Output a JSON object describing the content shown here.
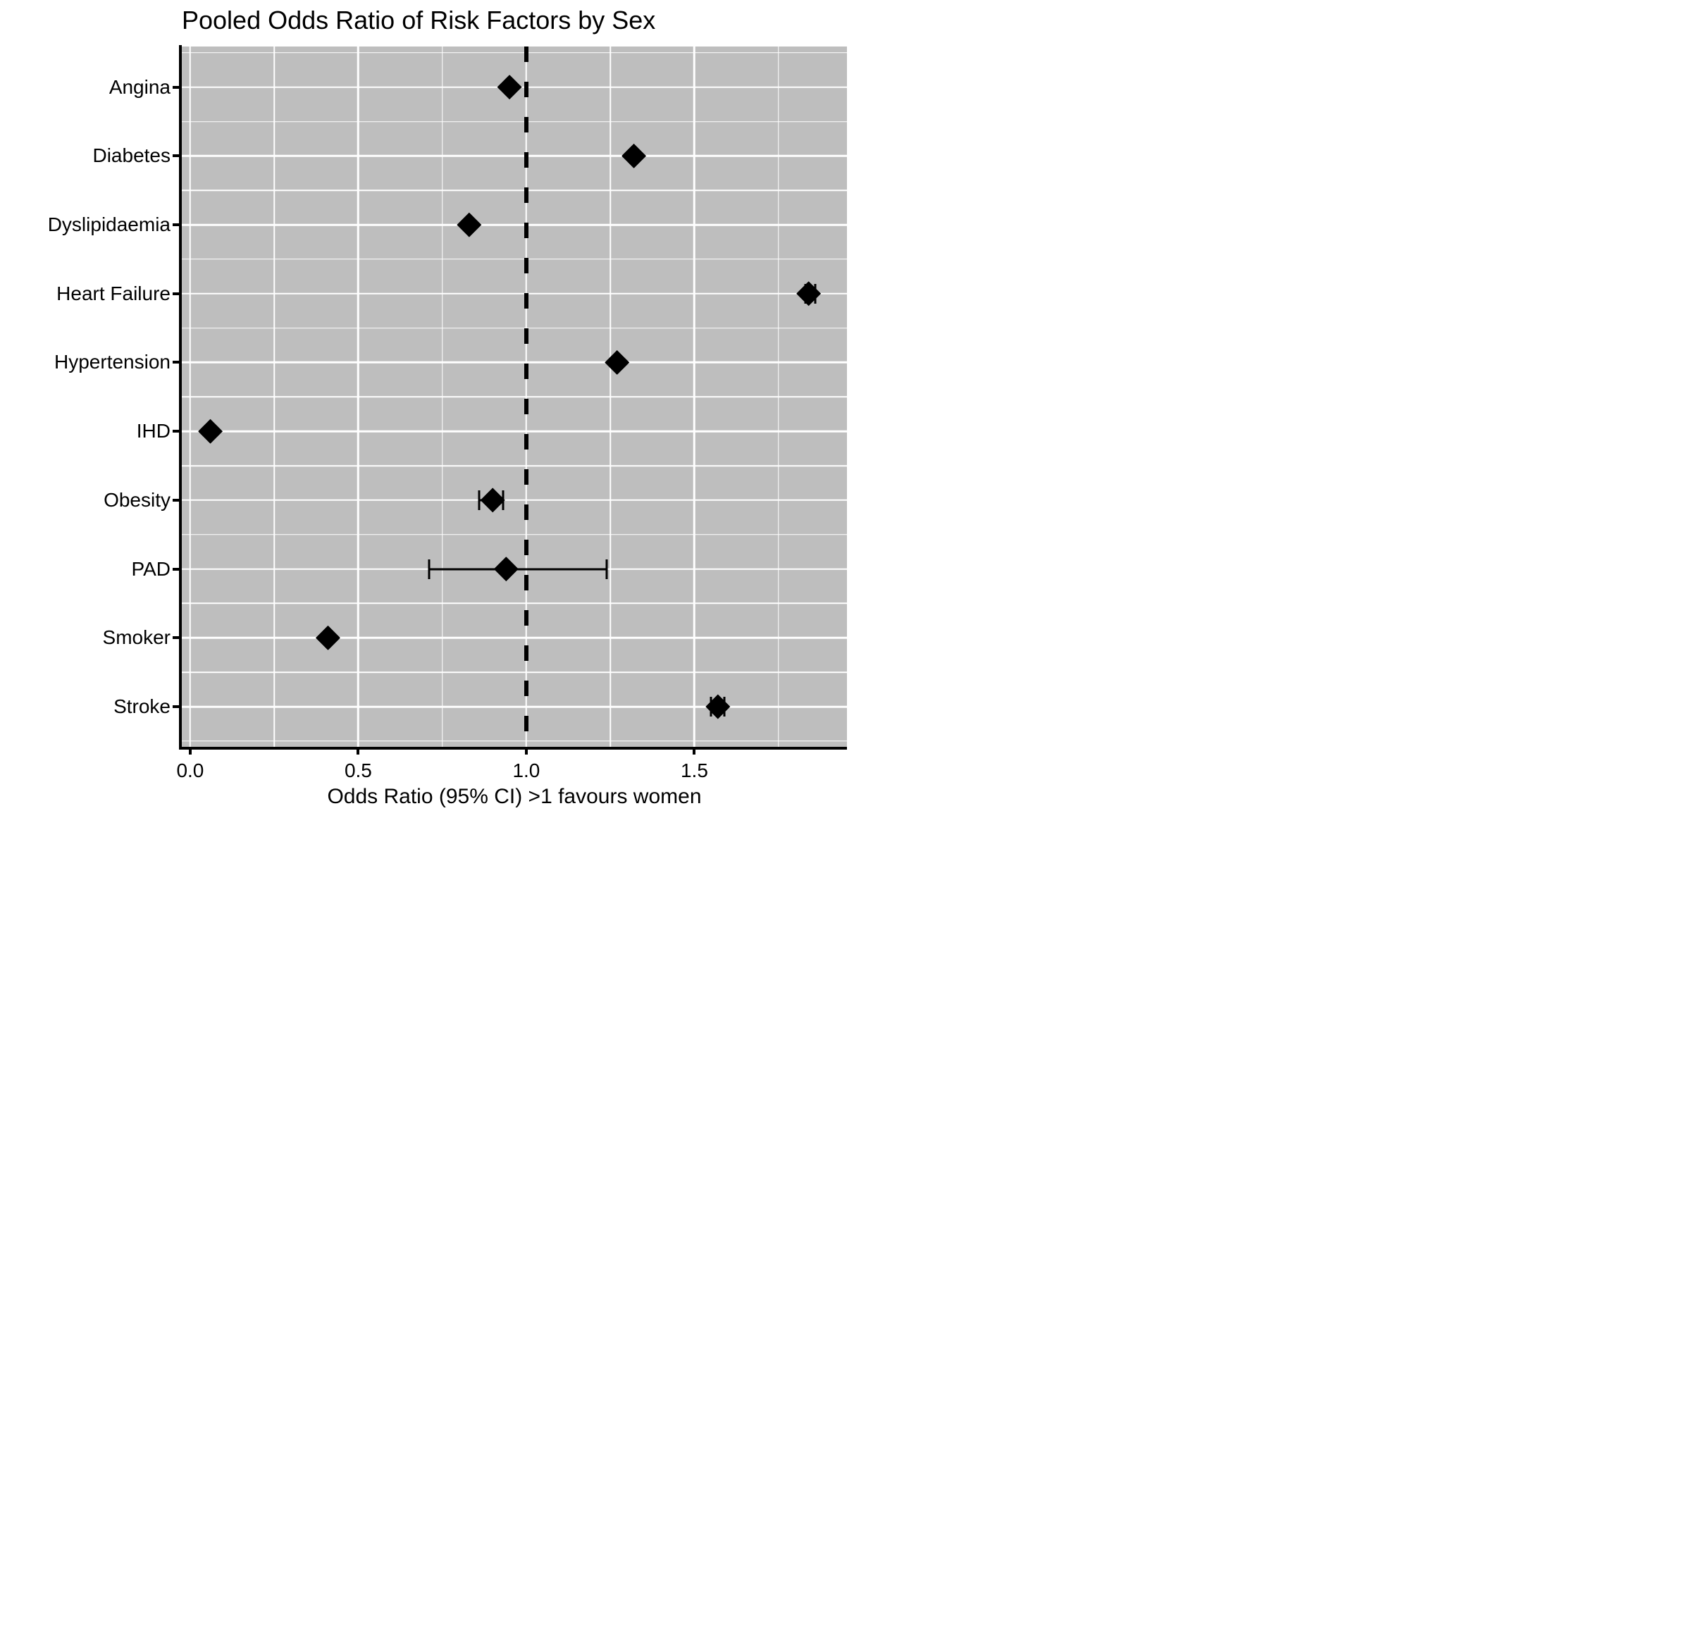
{
  "title": "Pooled Odds Ratio of Risk Factors by Sex",
  "colors": {
    "panel_background": "#bebebe",
    "gridline": "#ffffff",
    "marker": "#000000",
    "axis": "#000000",
    "text": "#000000",
    "page_background": "#ffffff"
  },
  "chart_data": {
    "type": "scatter",
    "subtype": "forest-plot",
    "marker": "diamond",
    "title": "Pooled Odds Ratio of Risk Factors by Sex",
    "xlabel": "Odds Ratio (95% CI) >1 favours women",
    "ylabel": "",
    "legend": "none",
    "grid": "major+minor",
    "categories": [
      "Angina",
      "Diabetes",
      "Dyslipidaemia",
      "Heart Failure",
      "Hypertension",
      "IHD",
      "Obesity",
      "PAD",
      "Smoker",
      "Stroke"
    ],
    "values": [
      0.95,
      1.32,
      0.83,
      1.84,
      1.27,
      0.06,
      0.9,
      0.94,
      0.41,
      1.57
    ],
    "ci_low": [
      null,
      null,
      null,
      1.83,
      null,
      null,
      0.86,
      0.71,
      null,
      1.55
    ],
    "ci_high": [
      null,
      null,
      null,
      1.86,
      null,
      null,
      0.93,
      1.24,
      null,
      1.59
    ],
    "xlim": [
      -0.025,
      1.954
    ],
    "x_major_ticks": [
      0,
      0.5,
      1,
      1.5
    ],
    "x_tick_labels": [
      "0.0",
      "0.5",
      "1.0",
      "1.5"
    ],
    "x_minor_ticks": [
      0.25,
      0.75,
      1.25,
      1.75
    ],
    "reference_line_x": 1.0,
    "reference_line_style": "dashed"
  }
}
